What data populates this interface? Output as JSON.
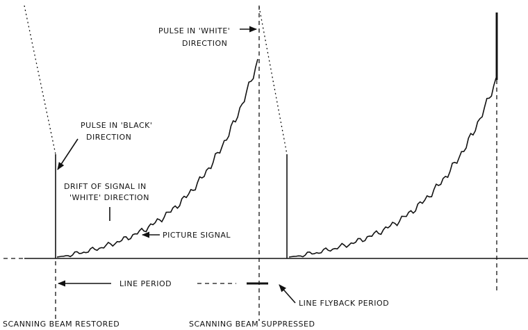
{
  "labels": {
    "pulse_white": [
      "PULSE IN 'WHITE'",
      "DIRECTION"
    ],
    "pulse_black": [
      "PULSE IN 'BLACK'",
      "DIRECTION"
    ],
    "drift": [
      "DRIFT OF SIGNAL IN",
      "'WHITE' DIRECTION"
    ],
    "picture_signal": "PICTURE SIGNAL",
    "line_period": "LINE PERIOD",
    "line_flyback": "LINE FLYBACK PERIOD",
    "beam_restored": "SCANNING BEAM RESTORED",
    "beam_suppressed": "SCANNING BEAM SUPPRESSED"
  }
}
